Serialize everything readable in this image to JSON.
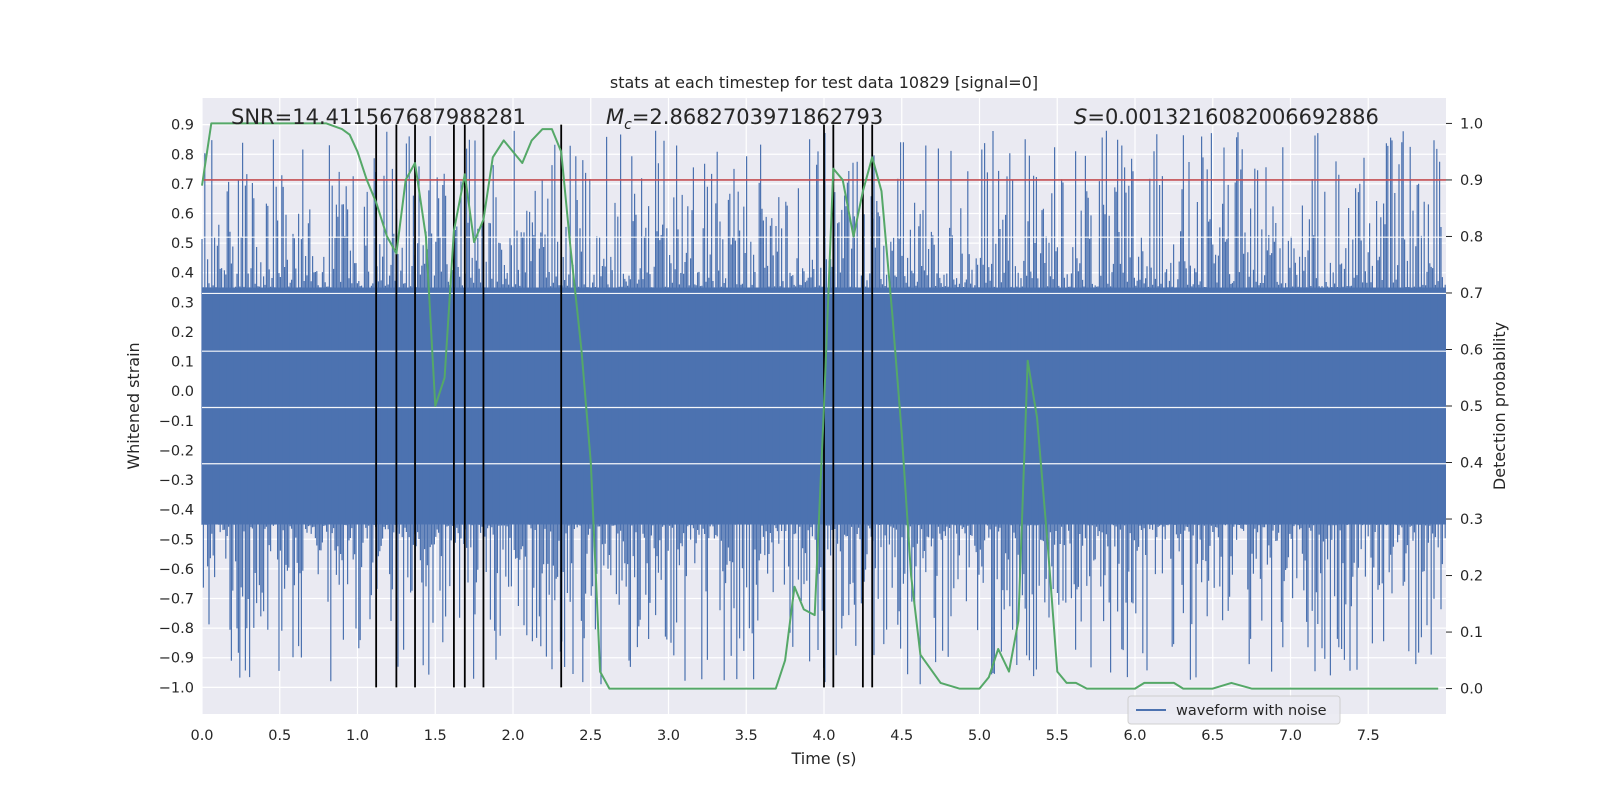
{
  "chart_data": {
    "type": "line",
    "title": "stats at each timestep for test data 10829 [signal=0]",
    "xlabel": "Time (s)",
    "ylabel": "Whitened strain",
    "y2label": "Detection probability",
    "xlim": [
      0.0,
      8.0
    ],
    "ylim": [
      -1.09,
      0.99
    ],
    "y2lim": [
      -0.045,
      1.045
    ],
    "xticks": [
      "0.0",
      "0.5",
      "1.0",
      "1.5",
      "2.0",
      "2.5",
      "3.0",
      "3.5",
      "4.0",
      "4.5",
      "5.0",
      "5.5",
      "6.0",
      "6.5",
      "7.0",
      "7.5"
    ],
    "yticks": [
      "0.9",
      "0.8",
      "0.7",
      "0.6",
      "0.5",
      "0.4",
      "0.3",
      "0.2",
      "0.1",
      "0.0",
      "−0.1",
      "−0.2",
      "−0.3",
      "−0.4",
      "−0.5",
      "−0.6",
      "−0.7",
      "−0.8",
      "−0.9",
      "−1.0"
    ],
    "y2ticks": [
      "1.0",
      "0.9",
      "0.8",
      "0.7",
      "0.6",
      "0.5",
      "0.4",
      "0.3",
      "0.2",
      "0.1",
      "0.0"
    ],
    "annotations": {
      "snr": "SNR=14.411567687988281",
      "mc_prefix": "M",
      "mc_sub": "c",
      "mc_value": "=2.8682703971862793",
      "s_prefix": "S",
      "s_value": "=0.0013216082006692886"
    },
    "legend": {
      "label": "waveform with noise",
      "position": "lower-right"
    },
    "threshold": 0.9,
    "vlines": [
      1.12,
      1.25,
      1.37,
      1.62,
      1.69,
      1.81,
      2.31,
      4.0,
      4.06,
      4.25,
      4.31
    ],
    "noise_series": {
      "name": "waveform with noise",
      "color": "#4c72b0",
      "core_band": [
        -0.45,
        0.35
      ],
      "max": 0.88,
      "min": -0.99
    },
    "detection_series": {
      "name": "detection probability",
      "color": "#55a868",
      "x": [
        0.0,
        0.06,
        0.12,
        0.3,
        0.6,
        0.8,
        0.9,
        0.95,
        1.0,
        1.06,
        1.12,
        1.19,
        1.25,
        1.31,
        1.37,
        1.44,
        1.5,
        1.56,
        1.62,
        1.69,
        1.75,
        1.81,
        1.87,
        1.94,
        2.0,
        2.06,
        2.12,
        2.19,
        2.25,
        2.31,
        2.37,
        2.44,
        2.5,
        2.56,
        2.62,
        2.75,
        3.0,
        3.25,
        3.5,
        3.62,
        3.69,
        3.75,
        3.81,
        3.87,
        3.94,
        4.0,
        4.06,
        4.12,
        4.19,
        4.25,
        4.31,
        4.37,
        4.44,
        4.5,
        4.56,
        4.62,
        4.75,
        4.87,
        5.0,
        5.06,
        5.12,
        5.19,
        5.25,
        5.31,
        5.37,
        5.44,
        5.5,
        5.56,
        5.62,
        5.69,
        5.75,
        5.87,
        6.0,
        6.06,
        6.12,
        6.25,
        6.31,
        6.37,
        6.5,
        6.62,
        6.75,
        7.0,
        7.5,
        7.95
      ],
      "y": [
        0.89,
        1.0,
        1.0,
        1.0,
        1.0,
        1.0,
        0.99,
        0.98,
        0.95,
        0.9,
        0.86,
        0.8,
        0.77,
        0.9,
        0.93,
        0.8,
        0.5,
        0.55,
        0.81,
        0.91,
        0.79,
        0.83,
        0.94,
        0.97,
        0.95,
        0.93,
        0.97,
        0.99,
        0.99,
        0.95,
        0.78,
        0.6,
        0.4,
        0.03,
        0.0,
        0.0,
        0.0,
        0.0,
        0.0,
        0.0,
        0.0,
        0.05,
        0.18,
        0.14,
        0.13,
        0.5,
        0.92,
        0.9,
        0.8,
        0.88,
        0.94,
        0.88,
        0.66,
        0.45,
        0.2,
        0.06,
        0.01,
        0.0,
        0.0,
        0.02,
        0.07,
        0.03,
        0.12,
        0.58,
        0.48,
        0.25,
        0.03,
        0.01,
        0.01,
        0.0,
        0.0,
        0.0,
        0.0,
        0.01,
        0.01,
        0.01,
        0.0,
        0.0,
        0.0,
        0.01,
        0.0,
        0.0,
        0.0,
        0.0
      ]
    }
  }
}
